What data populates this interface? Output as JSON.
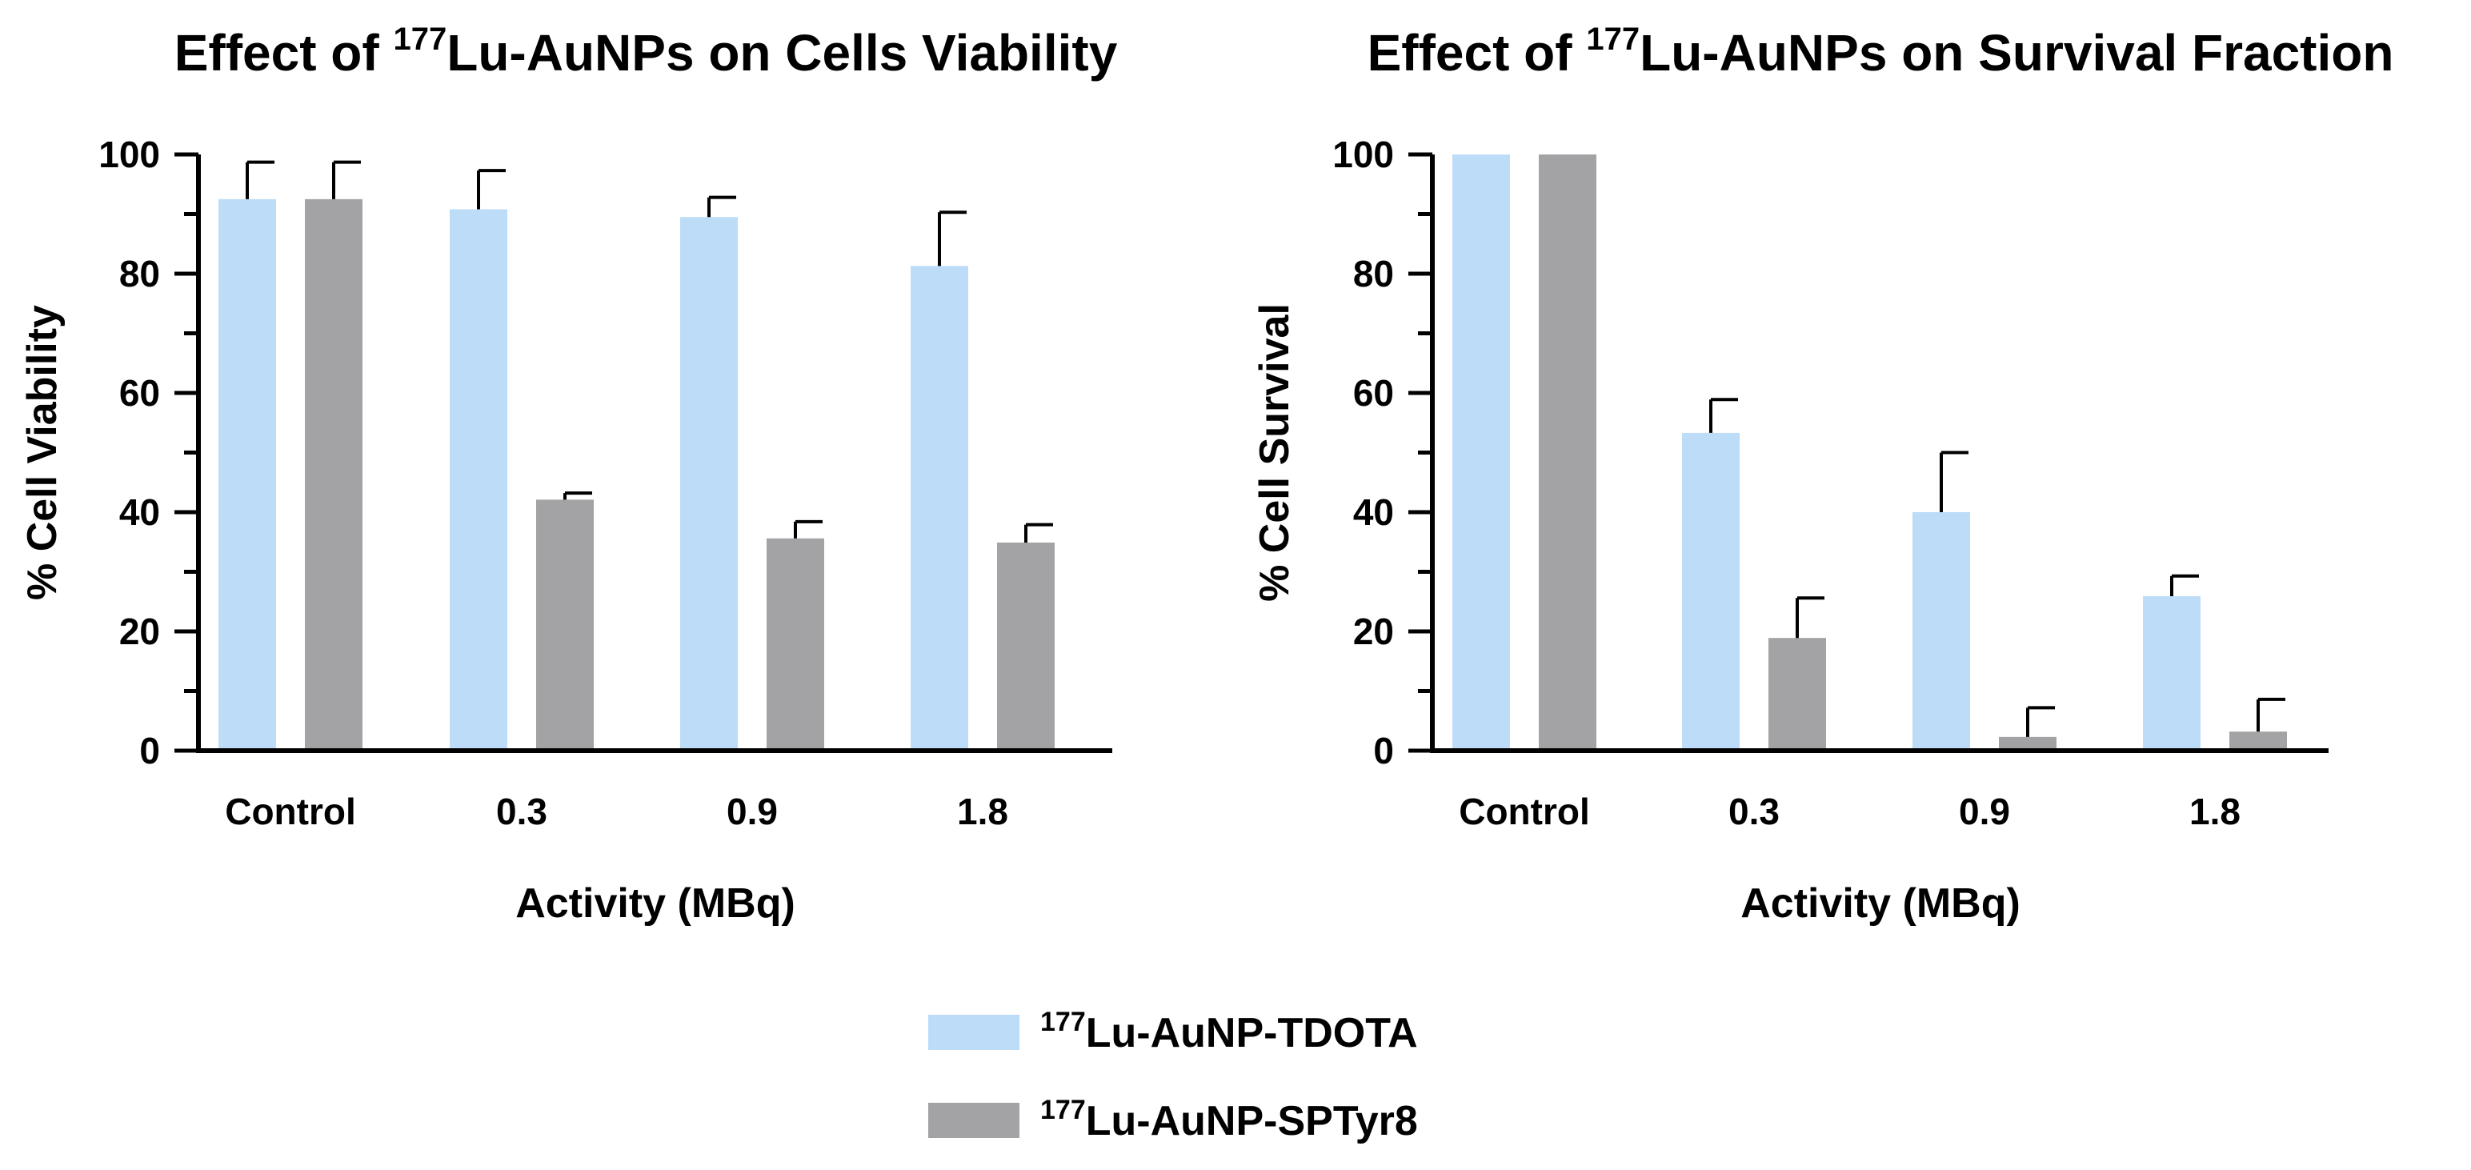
{
  "chart_data": [
    {
      "type": "bar",
      "title_prefix": "Effect of ",
      "title_sup": "177",
      "title_rest": "Lu-AuNPs on Cells Viability",
      "xlabel": "Activity (MBq)",
      "ylabel": "% Cell  Viability",
      "ylim": [
        0,
        100
      ],
      "yticks": [
        "0",
        "20",
        "40",
        "60",
        "80",
        "100"
      ],
      "categories": [
        "Control",
        "0.3",
        "0.9",
        "1.8"
      ],
      "series": [
        {
          "name": "177Lu-AuNP-TDOTA",
          "color": "#bddcf7",
          "values": [
            92.5,
            90.8,
            89.5,
            81.3
          ],
          "errors": [
            6.2,
            6.5,
            3.3,
            9.0
          ]
        },
        {
          "name": "177Lu-AuNP-SPTyr8",
          "color": "#a3a3a6",
          "values": [
            92.5,
            42.1,
            35.6,
            34.9
          ],
          "errors": [
            6.2,
            1.1,
            2.8,
            3.0
          ]
        }
      ],
      "grid": false
    },
    {
      "type": "bar",
      "title_prefix": "Effect of ",
      "title_sup": "177",
      "title_rest": "Lu-AuNPs on Survival Fraction",
      "xlabel": "Activity (MBq)",
      "ylabel": "% Cell  Survival",
      "ylim": [
        0,
        100
      ],
      "yticks": [
        "0",
        "20",
        "40",
        "60",
        "80",
        "100"
      ],
      "categories": [
        "Control",
        "0.3",
        "0.9",
        "1.8"
      ],
      "series": [
        {
          "name": "177Lu-AuNP-TDOTA",
          "color": "#bddcf7",
          "values": [
            100,
            53.3,
            40.0,
            25.9
          ],
          "errors": [
            0,
            5.6,
            10.0,
            3.4
          ]
        },
        {
          "name": "177Lu-AuNP-SPTyr8",
          "color": "#a3a3a6",
          "values": [
            100,
            18.9,
            2.3,
            3.2
          ],
          "errors": [
            0,
            6.7,
            4.9,
            5.4
          ]
        }
      ],
      "grid": false
    }
  ],
  "legend": {
    "placement": "bottom-center",
    "items": [
      {
        "sup": "177",
        "text": "Lu-AuNP-TDOTA",
        "color": "#bddcf7"
      },
      {
        "sup": "177",
        "text": "Lu-AuNP-SPTyr8",
        "color": "#a3a3a6"
      }
    ]
  }
}
